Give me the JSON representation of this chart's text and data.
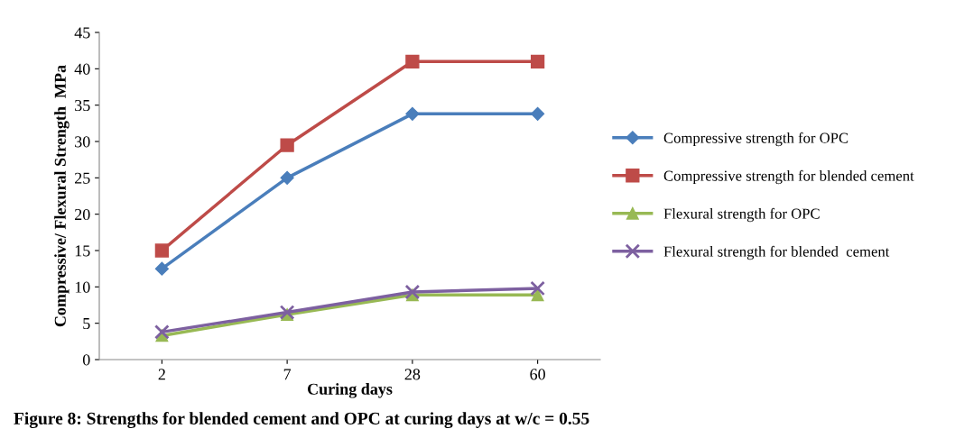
{
  "chart_data": {
    "type": "line",
    "xlabel": "Curing days",
    "ylabel": "Compressive/ Flexural Strength  MPa",
    "annotations": [
      "Figure 8: Strengths for blended cement and OPC at curing days at w/c = 0.55"
    ],
    "categories": [
      "2",
      "7",
      "28",
      "60"
    ],
    "series": [
      {
        "name": "Compressive strength for OPC",
        "color": "#4a7ebb",
        "marker": "diamond",
        "values": [
          12.5,
          25,
          33.8,
          33.8
        ]
      },
      {
        "name": "Compressive strength for blended cement",
        "color": "#be4b48",
        "marker": "square",
        "values": [
          15,
          29.5,
          41,
          41
        ]
      },
      {
        "name": "Flexural strength for OPC",
        "color": "#98b954",
        "marker": "triangle",
        "values": [
          3.3,
          6.2,
          8.9,
          8.9
        ]
      },
      {
        "name": "Flexural strength for blended  cement",
        "color": "#7d60a0",
        "marker": "cross",
        "values": [
          3.8,
          6.5,
          9.3,
          9.8
        ]
      }
    ],
    "ylim": [
      0,
      45
    ],
    "yticks": [
      0,
      5,
      10,
      15,
      20,
      25,
      30,
      35,
      40,
      45
    ],
    "grid": false,
    "legend": "right",
    "line_style": "solid"
  }
}
